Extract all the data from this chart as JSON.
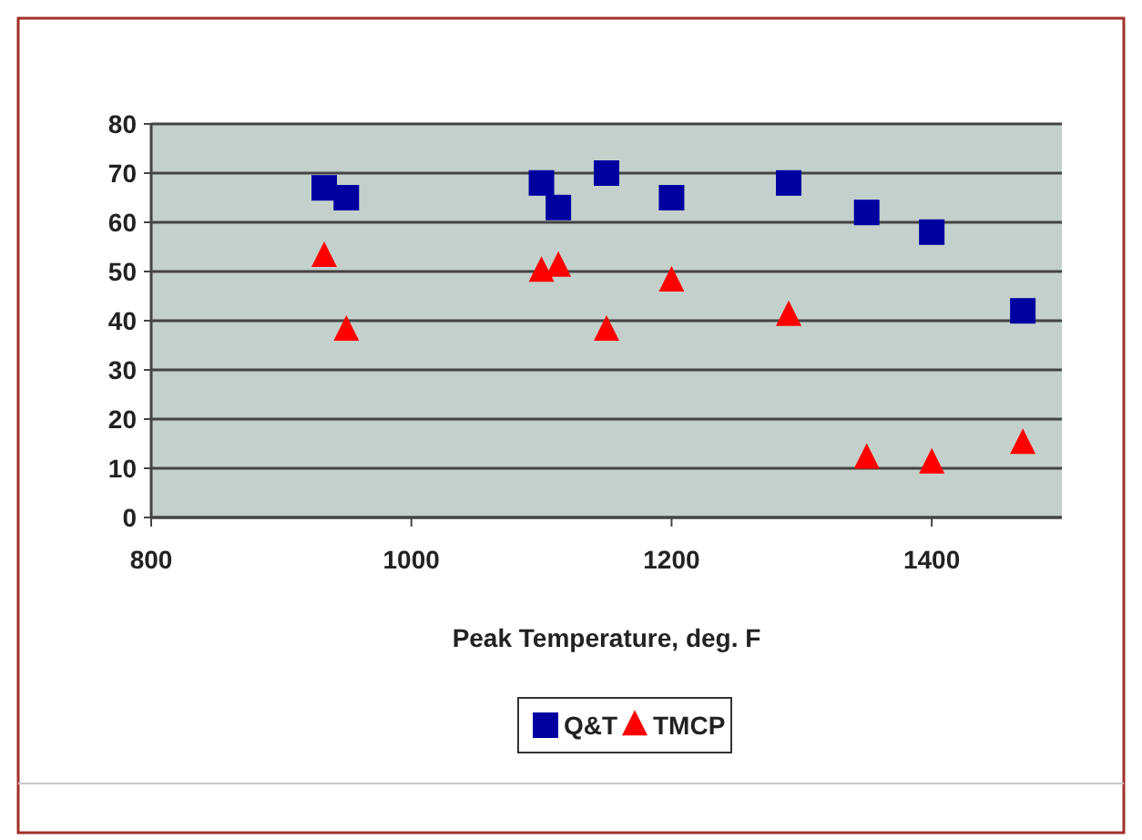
{
  "chart_data": {
    "type": "scatter",
    "xlabel": "Peak Temperature, deg. F",
    "xlim": [
      800,
      1500
    ],
    "xticks": [
      800,
      1000,
      1200,
      1400
    ],
    "ylim": [
      0,
      80
    ],
    "yticks": [
      0,
      10,
      20,
      30,
      40,
      50,
      60,
      70,
      80
    ],
    "grid": "y",
    "legend": "bottom",
    "series": [
      {
        "name": "Q&T",
        "color": "#0000a0",
        "marker": "square",
        "x": [
          933,
          950,
          1100,
          1113,
          1150,
          1200,
          1290,
          1350,
          1400,
          1470
        ],
        "values": [
          67,
          65,
          68,
          63,
          70,
          65,
          68,
          62,
          58,
          42
        ]
      },
      {
        "name": "TMCP",
        "color": "#ff0000",
        "marker": "triangle",
        "x": [
          933,
          950,
          1100,
          1113,
          1150,
          1200,
          1290,
          1350,
          1400,
          1470
        ],
        "values": [
          53,
          38,
          50,
          51,
          38,
          48,
          41,
          12,
          11,
          15
        ]
      }
    ]
  }
}
